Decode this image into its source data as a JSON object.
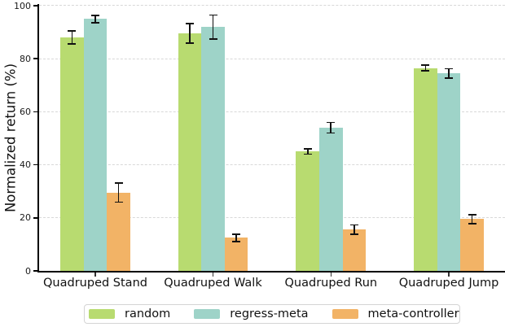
{
  "chart_data": {
    "type": "bar",
    "title": "",
    "xlabel": "",
    "ylabel": "Normalized return (%)",
    "ylim": [
      0,
      100
    ],
    "yticks": [
      0,
      20,
      40,
      60,
      80,
      100
    ],
    "grid": "horizontal-dashed",
    "legend_position": "bottom",
    "error_bars": true,
    "categories": [
      "Quadruped Stand",
      "Quadruped Walk",
      "Quadruped Run",
      "Quadruped Jump"
    ],
    "series": [
      {
        "name": "random",
        "color": "#b8db70",
        "values": [
          88.0,
          89.5,
          45.0,
          76.5
        ],
        "errors": [
          2.5,
          3.7,
          1.0,
          1.0
        ]
      },
      {
        "name": "regress-meta",
        "color": "#9ed3c8",
        "values": [
          95.0,
          92.0,
          54.0,
          74.5
        ],
        "errors": [
          1.4,
          4.5,
          2.0,
          1.7
        ]
      },
      {
        "name": "meta-controller",
        "color": "#f2b366",
        "values": [
          29.5,
          12.5,
          15.5,
          19.5
        ],
        "errors": [
          3.6,
          1.4,
          1.8,
          1.7
        ]
      }
    ]
  },
  "colors": {
    "gridline": "#d8d8d8",
    "axis": "#000000",
    "error_bar": "#111111",
    "legend_border": "#d4d4d4"
  }
}
